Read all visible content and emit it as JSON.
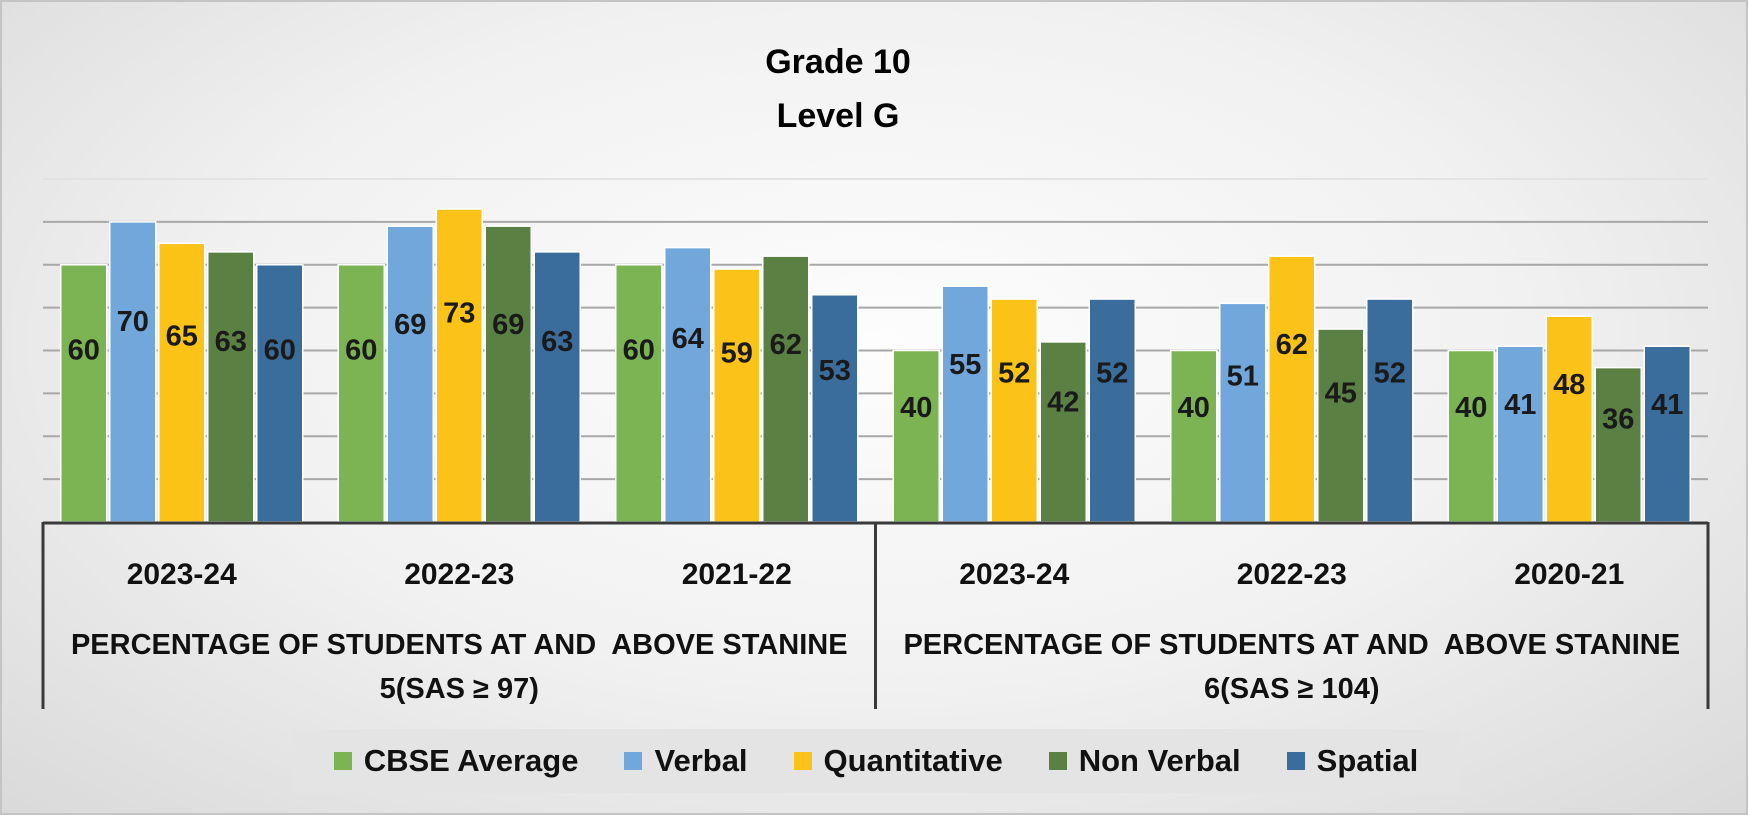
{
  "chart_data": {
    "type": "bar",
    "title": [
      "Grade 10",
      "Level G"
    ],
    "categories": [
      "2023-24",
      "2022-23",
      "2021-22",
      "2023-24",
      "2022-23",
      "2020-21"
    ],
    "groups": [
      {
        "label_lines": [
          "PERCENTAGE OF STUDENTS AT AND  ABOVE STANINE",
          "5(SAS ≥ 97)"
        ],
        "category_span": [
          0,
          2
        ]
      },
      {
        "label_lines": [
          "PERCENTAGE OF STUDENTS AT AND  ABOVE STANINE",
          "6(SAS ≥ 104)"
        ],
        "category_span": [
          3,
          5
        ]
      }
    ],
    "series": [
      {
        "name": "CBSE Average",
        "color": "#7cb353",
        "values": [
          60,
          60,
          60,
          40,
          40,
          40
        ]
      },
      {
        "name": "Verbal",
        "color": "#72a7dc",
        "values": [
          70,
          69,
          64,
          55,
          51,
          41
        ]
      },
      {
        "name": "Quantitative",
        "color": "#fbc317",
        "values": [
          65,
          73,
          59,
          52,
          62,
          48
        ]
      },
      {
        "name": "Non Verbal",
        "color": "#5b8044",
        "values": [
          63,
          69,
          62,
          42,
          45,
          36
        ]
      },
      {
        "name": "Spatial",
        "color": "#3b6d9c",
        "values": [
          60,
          63,
          53,
          52,
          52,
          41
        ]
      }
    ],
    "ylim": [
      0,
      80
    ],
    "grid": true,
    "legend": "bottom"
  }
}
